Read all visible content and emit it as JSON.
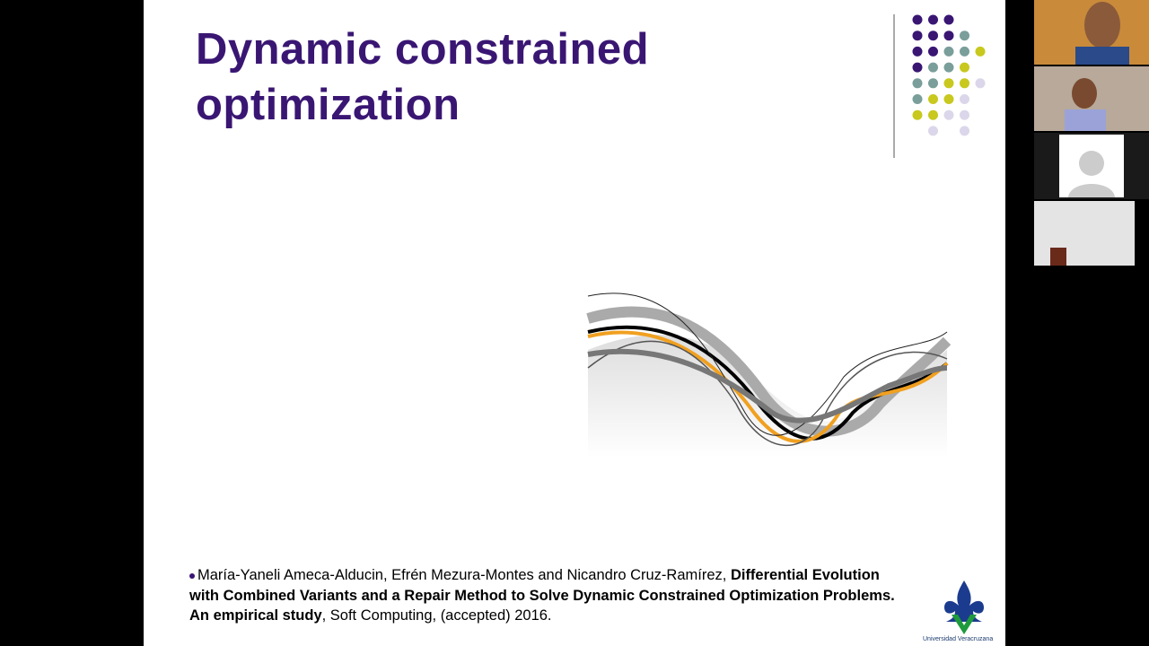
{
  "slide": {
    "title": "Dynamic constrained optimization",
    "reference": {
      "authors": "María-Yaneli Ameca-Alducin, Efrén Mezura-Montes and Nicandro Cruz-Ramírez,",
      "paper_title": "Differential Evolution with Combined Variants and a Repair Method to Solve Dynamic Constrained Optimization Problems. An empirical study",
      "venue": ", Soft Computing, (accepted) 2016."
    },
    "logo_caption": "Universidad Veracruzana"
  }
}
